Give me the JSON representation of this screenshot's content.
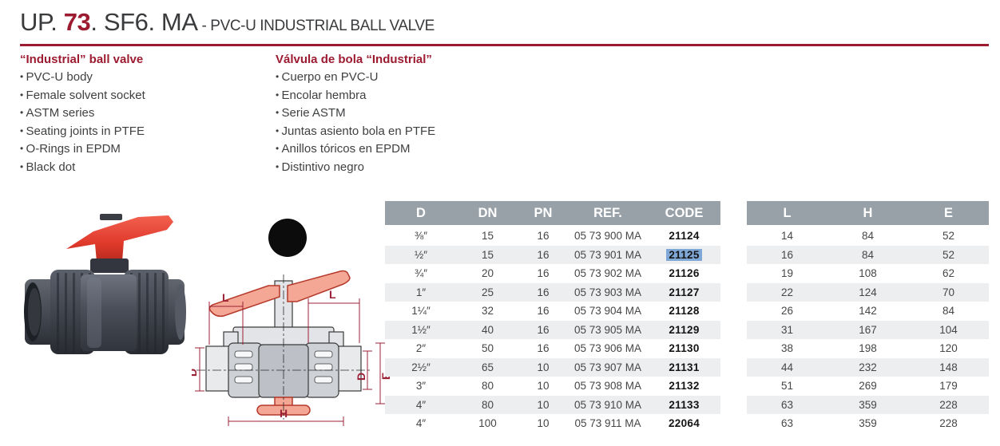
{
  "header": {
    "title_prefix": "UP. ",
    "title_number": "73",
    "title_suffix": ". SF6. MA",
    "subtitle": " - PVC-U INDUSTRIAL BALL VALVE"
  },
  "features_en": {
    "heading": "“Industrial” ball valve",
    "items": [
      "PVC-U body",
      "Female solvent socket",
      "ASTM series",
      "Seating joints in PTFE",
      "O-Rings in EPDM",
      "Black dot"
    ]
  },
  "features_es": {
    "heading": "Válvula de bola “Industrial”",
    "items": [
      "Cuerpo en PVC-U",
      "Encolar hembra",
      "Serie ASTM",
      "Juntas asiento bola en PTFE",
      "Anillos tóricos en EPDM",
      "Distintivo negro"
    ]
  },
  "diagram": {
    "l_left": "L",
    "l_right": "L",
    "d_left": "D",
    "d_right": "D",
    "e_label": "E",
    "h_label": "H"
  },
  "table_main": {
    "headers": [
      "D",
      "DN",
      "PN",
      "REF.",
      "CODE"
    ],
    "rows": [
      [
        "⅜″",
        "15",
        "16",
        "05 73 900 MA",
        "21124"
      ],
      [
        "½″",
        "15",
        "16",
        "05 73 901 MA",
        "21125"
      ],
      [
        "¾″",
        "20",
        "16",
        "05 73 902 MA",
        "21126"
      ],
      [
        "1″",
        "25",
        "16",
        "05 73 903 MA",
        "21127"
      ],
      [
        "1¼″",
        "32",
        "16",
        "05 73 904 MA",
        "21128"
      ],
      [
        "1½″",
        "40",
        "16",
        "05 73 905 MA",
        "21129"
      ],
      [
        "2″",
        "50",
        "16",
        "05 73 906 MA",
        "21130"
      ],
      [
        "2½″",
        "65",
        "10",
        "05 73 907 MA",
        "21131"
      ],
      [
        "3″",
        "80",
        "10",
        "05 73 908 MA",
        "21132"
      ],
      [
        "4″",
        "80",
        "10",
        "05 73 910 MA",
        "21133"
      ],
      [
        "4″",
        "100",
        "10",
        "05 73 911 MA",
        "22064"
      ]
    ],
    "highlight": {
      "row": 1,
      "col": 4
    }
  },
  "table_dims": {
    "headers": [
      "L",
      "H",
      "E"
    ],
    "rows": [
      [
        "14",
        "84",
        "52"
      ],
      [
        "16",
        "84",
        "52"
      ],
      [
        "19",
        "108",
        "62"
      ],
      [
        "22",
        "124",
        "70"
      ],
      [
        "26",
        "142",
        "84"
      ],
      [
        "31",
        "167",
        "104"
      ],
      [
        "38",
        "198",
        "120"
      ],
      [
        "44",
        "232",
        "148"
      ],
      [
        "51",
        "269",
        "179"
      ],
      [
        "63",
        "359",
        "228"
      ],
      [
        "63",
        "359",
        "228"
      ]
    ]
  },
  "colors": {
    "accent_red": "#9c1b30",
    "table_header_gray": "#99a1a8",
    "row_alt_gray": "#eceef0",
    "selection_blue": "#7fa8d6",
    "handle_red": "#e8402f",
    "body_gray": "#4a4e58"
  }
}
